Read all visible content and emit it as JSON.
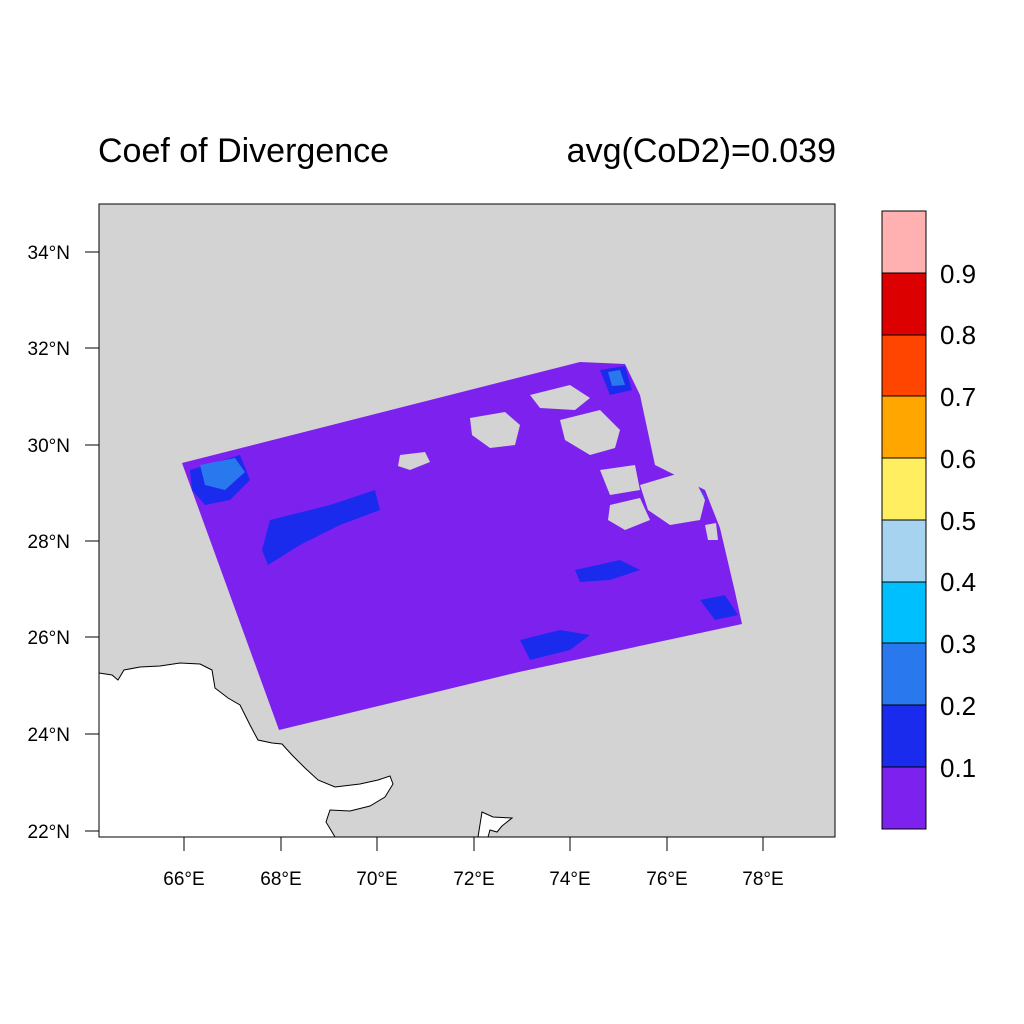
{
  "figure": {
    "title_left": "Coef of Divergence",
    "title_right": "avg(CoD2)=0.039"
  },
  "map": {
    "background_color": "#d3d3d3",
    "land_color": "#ffffff",
    "lon_ticks": [
      "66°E",
      "68°E",
      "70°E",
      "72°E",
      "74°E",
      "76°E",
      "78°E"
    ],
    "lat_ticks": [
      "22°N",
      "24°N",
      "26°N",
      "28°N",
      "30°N",
      "32°N",
      "34°N"
    ]
  },
  "colorbar": {
    "labels": [
      "0.1",
      "0.2",
      "0.3",
      "0.4",
      "0.5",
      "0.6",
      "0.7",
      "0.8",
      "0.9"
    ],
    "colors": [
      "#7d22ee",
      "#1a2bee",
      "#2a78ee",
      "#00bfff",
      "#a6d3ef",
      "#ffee60",
      "#ffa700",
      "#ff4500",
      "#dc0000",
      "#ffb0b0"
    ]
  }
}
